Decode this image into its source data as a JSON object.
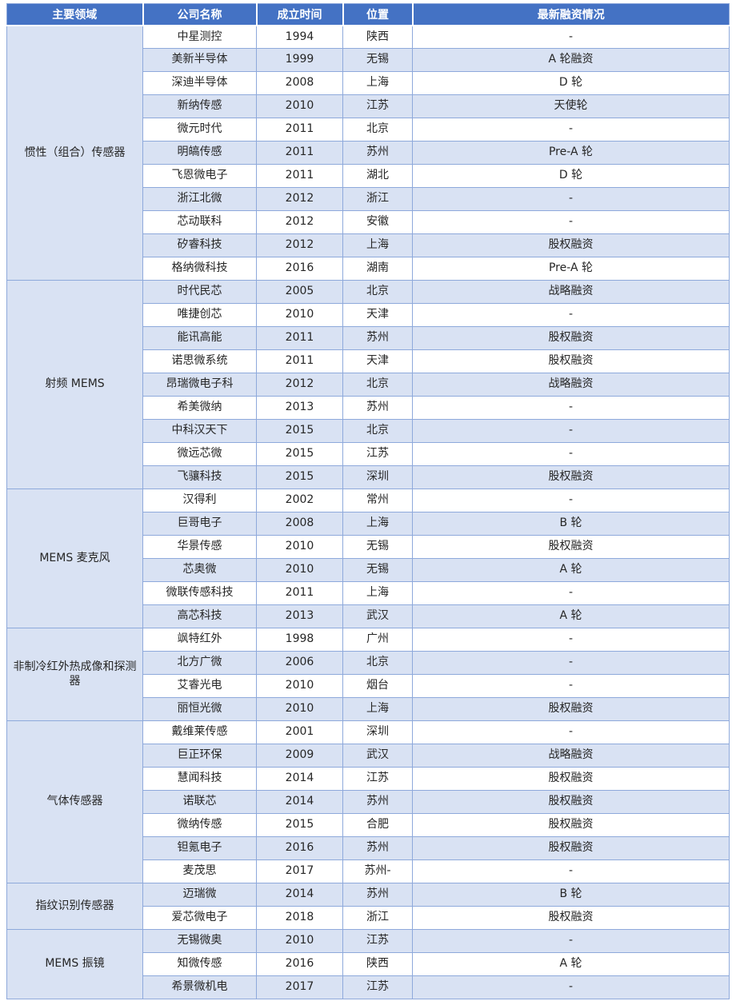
{
  "colors": {
    "header_bg": "#4472C4",
    "header_text": "#FFFFFF",
    "banded_row_bg": "#D9E2F3",
    "category_column_bg": "#D9E2F3",
    "border": "#8EA9DB",
    "body_text": "#262626"
  },
  "chart_data": {
    "type": "table",
    "title": "",
    "columns": [
      "主要领域",
      "公司名称",
      "成立时间",
      "位置",
      "最新融资情况"
    ],
    "column_keys": [
      "field",
      "company",
      "founded",
      "location",
      "financing"
    ],
    "groups": [
      {
        "field": "惯性（组合）传感器",
        "rows": [
          [
            "中星测控",
            "1994",
            "陕西",
            "-"
          ],
          [
            "美新半导体",
            "1999",
            "无锡",
            "A 轮融资"
          ],
          [
            "深迪半导体",
            "2008",
            "上海",
            "D 轮"
          ],
          [
            "新纳传感",
            "2010",
            "江苏",
            "天使轮"
          ],
          [
            "微元时代",
            "2011",
            "北京",
            "-"
          ],
          [
            "明皜传感",
            "2011",
            "苏州",
            "Pre-A 轮"
          ],
          [
            "飞恩微电子",
            "2011",
            "湖北",
            "D 轮"
          ],
          [
            "浙江北微",
            "2012",
            "浙江",
            "-"
          ],
          [
            "芯动联科",
            "2012",
            "安徽",
            "-"
          ],
          [
            "矽睿科技",
            "2012",
            "上海",
            "股权融资"
          ],
          [
            "格纳微科技",
            "2016",
            "湖南",
            "Pre-A 轮"
          ]
        ]
      },
      {
        "field": "射频 MEMS",
        "rows": [
          [
            "时代民芯",
            "2005",
            "北京",
            "战略融资"
          ],
          [
            "唯捷创芯",
            "2010",
            "天津",
            "-"
          ],
          [
            "能讯高能",
            "2011",
            "苏州",
            "股权融资"
          ],
          [
            "诺思微系统",
            "2011",
            "天津",
            "股权融资"
          ],
          [
            "昂瑞微电子科",
            "2012",
            "北京",
            "战略融资"
          ],
          [
            "希美微纳",
            "2013",
            "苏州",
            "-"
          ],
          [
            "中科汉天下",
            "2015",
            "北京",
            "-"
          ],
          [
            "微远芯微",
            "2015",
            "江苏",
            "-"
          ],
          [
            "飞骧科技",
            "2015",
            "深圳",
            "股权融资"
          ]
        ]
      },
      {
        "field": "MEMS 麦克风",
        "rows": [
          [
            "汉得利",
            "2002",
            "常州",
            "-"
          ],
          [
            "巨哥电子",
            "2008",
            "上海",
            "B 轮"
          ],
          [
            "华景传感",
            "2010",
            "无锡",
            "股权融资"
          ],
          [
            "芯奥微",
            "2010",
            "无锡",
            "A 轮"
          ],
          [
            "微联传感科技",
            "2011",
            "上海",
            "-"
          ],
          [
            "高芯科技",
            "2013",
            "武汉",
            "A 轮"
          ]
        ]
      },
      {
        "field": "非制冷红外热成像和探测器",
        "rows": [
          [
            "飒特红外",
            "1998",
            "广州",
            "-"
          ],
          [
            "北方广微",
            "2006",
            "北京",
            "-"
          ],
          [
            "艾睿光电",
            "2010",
            "烟台",
            "-"
          ],
          [
            "丽恒光微",
            "2010",
            "上海",
            "股权融资"
          ]
        ]
      },
      {
        "field": "气体传感器",
        "rows": [
          [
            "戴维莱传感",
            "2001",
            "深圳",
            "-"
          ],
          [
            "巨正环保",
            "2009",
            "武汉",
            "战略融资"
          ],
          [
            "慧闻科技",
            "2014",
            "江苏",
            "股权融资"
          ],
          [
            "诺联芯",
            "2014",
            "苏州",
            "股权融资"
          ],
          [
            "微纳传感",
            "2015",
            "合肥",
            "股权融资"
          ],
          [
            "钽氪电子",
            "2016",
            "苏州",
            "股权融资"
          ],
          [
            "麦茂思",
            "2017",
            "苏州-",
            "-"
          ]
        ]
      },
      {
        "field": "指纹识别传感器",
        "rows": [
          [
            "迈瑞微",
            "2014",
            "苏州",
            "B 轮"
          ],
          [
            "爱芯微电子",
            "2018",
            "浙江",
            "股权融资"
          ]
        ]
      },
      {
        "field": "MEMS 振镜",
        "rows": [
          [
            "无锡微奥",
            "2010",
            "江苏",
            "-"
          ],
          [
            "知微传感",
            "2016",
            "陕西",
            "A 轮"
          ],
          [
            "希景微机电",
            "2017",
            "江苏",
            "-"
          ]
        ]
      }
    ]
  }
}
